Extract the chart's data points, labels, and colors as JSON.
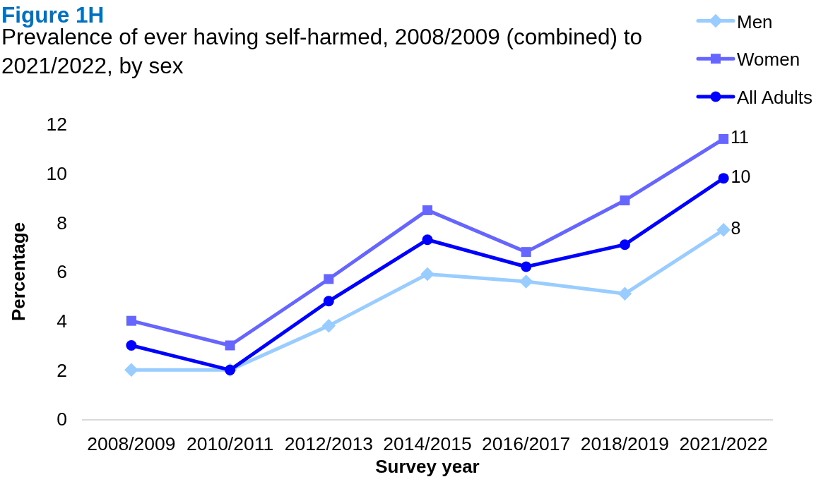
{
  "chart_data": {
    "type": "line",
    "title": "Figure 1H",
    "subtitle": "Prevalence of ever having self-harmed, 2008/2009 (combined) to 2021/2022, by sex",
    "xlabel": "Survey year",
    "ylabel": "Percentage",
    "categories": [
      "2008/2009",
      "2010/2011",
      "2012/2013",
      "2014/2015",
      "2016/2017",
      "2018/2019",
      "2021/2022"
    ],
    "series": [
      {
        "name": "Men",
        "color": "#99ccff",
        "marker": "diamond",
        "values": [
          2.0,
          2.0,
          3.8,
          5.9,
          5.6,
          5.1,
          7.7
        ],
        "value_labels": [
          null,
          null,
          null,
          null,
          null,
          null,
          "8"
        ]
      },
      {
        "name": "Women",
        "color": "#6666ff",
        "marker": "square",
        "values": [
          4.0,
          3.0,
          5.7,
          8.5,
          6.8,
          8.9,
          11.4
        ],
        "value_labels": [
          null,
          null,
          null,
          null,
          null,
          null,
          "11"
        ]
      },
      {
        "name": "All Adults",
        "color": "#0000ff",
        "marker": "circle",
        "values": [
          3.0,
          2.0,
          4.8,
          7.3,
          6.2,
          7.1,
          9.8
        ],
        "value_labels": [
          null,
          null,
          null,
          null,
          null,
          null,
          "10"
        ]
      }
    ],
    "ylim": [
      0,
      12
    ],
    "yticks": [
      0,
      2,
      4,
      6,
      8,
      10,
      12
    ],
    "grid": false,
    "legend": "top right",
    "line_style": "solid"
  }
}
